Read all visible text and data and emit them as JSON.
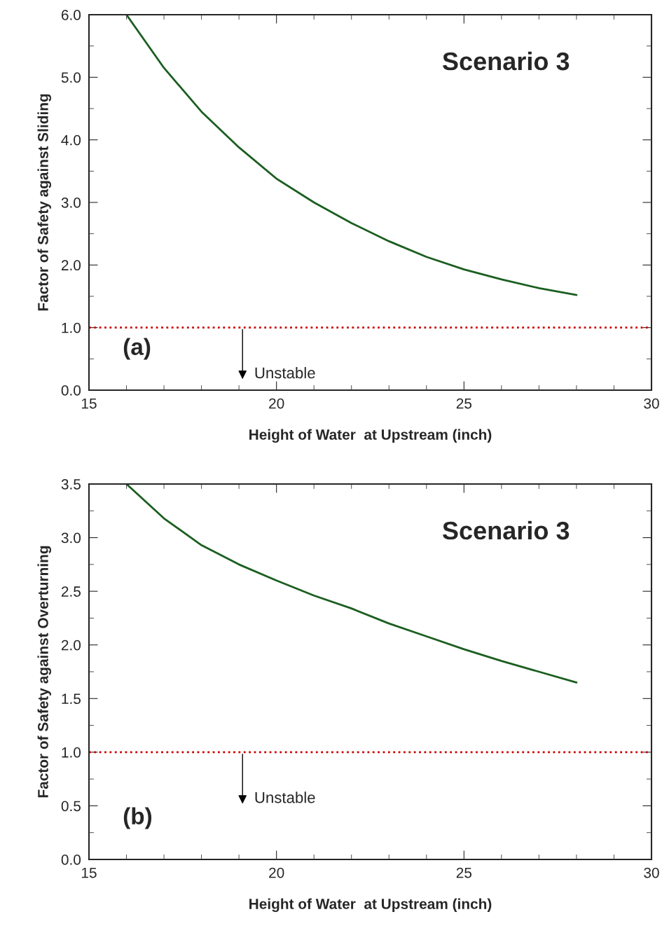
{
  "chart_data": [
    {
      "type": "line",
      "xlabel": "Height of Water  at Upstream (inch)",
      "ylabel": "Factor of Safety against Sliding",
      "x": [
        16,
        17,
        18,
        19,
        20,
        21,
        22,
        23,
        24,
        25,
        26,
        27,
        28
      ],
      "series": [
        {
          "color": "#1b5e20",
          "values": [
            6.0,
            5.15,
            4.45,
            3.88,
            3.38,
            3.0,
            2.67,
            2.38,
            2.13,
            1.93,
            1.77,
            1.63,
            1.52
          ]
        }
      ],
      "xlim": [
        15,
        30
      ],
      "xticks": [
        15,
        20,
        25,
        30
      ],
      "ylim": [
        0,
        6
      ],
      "yticks": [
        {
          "value": 0,
          "label": "0.0"
        },
        {
          "value": 1,
          "label": "1.0"
        },
        {
          "value": 2,
          "label": "2.0"
        },
        {
          "value": 3,
          "label": "3.0"
        },
        {
          "value": 4,
          "label": "4.0"
        },
        {
          "value": 5,
          "label": "5.0"
        },
        {
          "value": 6,
          "label": "6.0"
        }
      ],
      "ref_lines": [
        {
          "axis": "y",
          "value": 1.0,
          "color": "#cc0000",
          "line_style": "dotted"
        }
      ],
      "annotations": [
        "Scenario 3",
        "(a)",
        "Unstable"
      ],
      "grid": false,
      "marker": "none",
      "line_style": "solid"
    },
    {
      "type": "line",
      "xlabel": "Height of Water  at Upstream (inch)",
      "ylabel": "Factor of Safety against Overturning",
      "x": [
        16,
        17,
        18,
        19,
        20,
        21,
        22,
        23,
        24,
        25,
        26,
        27,
        28
      ],
      "series": [
        {
          "color": "#1b5e20",
          "values": [
            3.5,
            3.18,
            2.93,
            2.75,
            2.6,
            2.46,
            2.34,
            2.2,
            2.08,
            1.96,
            1.85,
            1.75,
            1.65
          ]
        }
      ],
      "xlim": [
        15,
        30
      ],
      "xticks": [
        15,
        20,
        25,
        30
      ],
      "ylim": [
        0,
        3.5
      ],
      "yticks": [
        {
          "value": 0,
          "label": "0.0"
        },
        {
          "value": 0.5,
          "label": "0.5"
        },
        {
          "value": 1,
          "label": "1.0"
        },
        {
          "value": 1.5,
          "label": "1.5"
        },
        {
          "value": 2,
          "label": "2.0"
        },
        {
          "value": 2.5,
          "label": "2.5"
        },
        {
          "value": 3,
          "label": "3.0"
        },
        {
          "value": 3.5,
          "label": "3.5"
        }
      ],
      "ref_lines": [
        {
          "axis": "y",
          "value": 1.0,
          "color": "#cc0000",
          "line_style": "dotted"
        }
      ],
      "annotations": [
        "Scenario 3",
        "(b)",
        "Unstable"
      ],
      "grid": false,
      "marker": "none",
      "line_style": "solid"
    }
  ]
}
